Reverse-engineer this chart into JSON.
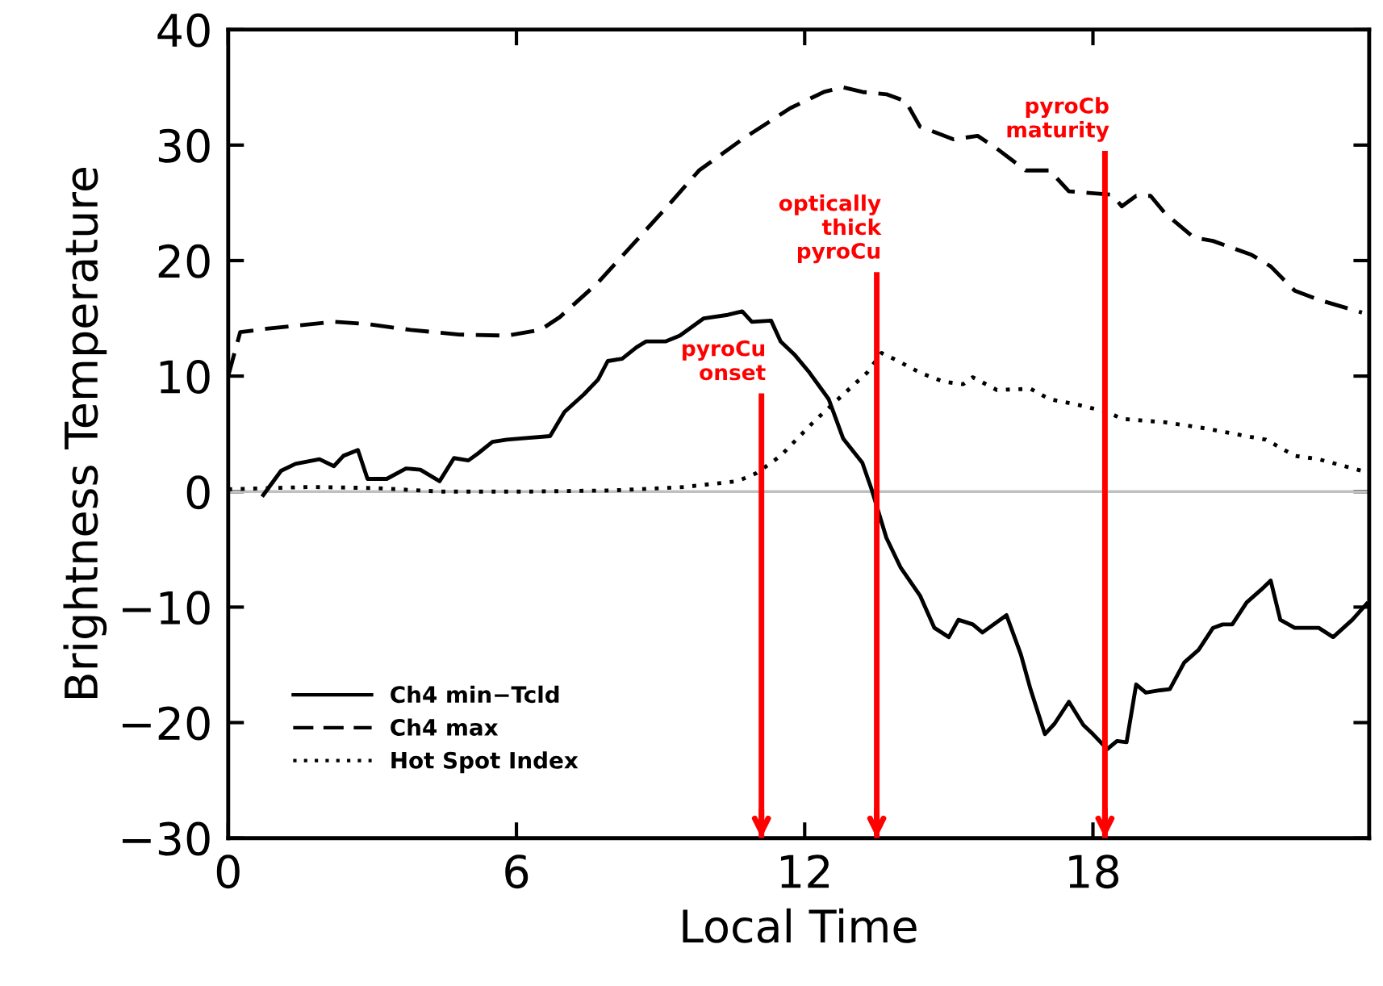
{
  "chart_data": {
    "type": "line",
    "xlabel": "Local Time",
    "ylabel": "Brightness Temperature",
    "xlim": [
      0,
      23.75
    ],
    "xticks": [
      0,
      6,
      12,
      18
    ],
    "ylim": [
      -30,
      40
    ],
    "yticks": [
      {
        "value": -30,
        "label": "−30"
      },
      {
        "value": -20,
        "label": "−20"
      },
      {
        "value": -10,
        "label": "−10"
      },
      0,
      10,
      20,
      30,
      40
    ],
    "grid": false,
    "legend": "bottom left",
    "series": [
      {
        "name": "Ch4 min−Tcld",
        "color": "#000000",
        "line_style": "solid",
        "x": [
          0.73,
          1.1,
          1.4,
          1.9,
          2.2,
          2.4,
          2.7,
          2.9,
          3.3,
          3.7,
          4.0,
          4.4,
          4.7,
          5.0,
          5.2,
          5.5,
          5.8,
          6.1,
          6.7,
          7.0,
          7.4,
          7.7,
          7.9,
          8.2,
          8.5,
          8.7,
          9.1,
          9.4,
          9.9,
          10.4,
          10.7,
          10.9,
          11.3,
          11.5,
          11.8,
          12.1,
          12.5,
          12.8,
          13.2,
          13.4,
          13.7,
          14.0,
          14.4,
          14.7,
          15.0,
          15.2,
          15.5,
          15.7,
          16.2,
          16.5,
          16.7,
          17.0,
          17.2,
          17.5,
          17.8,
          18.0,
          18.3,
          18.5,
          18.7,
          18.9,
          19.1,
          19.4,
          19.6,
          19.9,
          20.2,
          20.5,
          20.7,
          20.9,
          21.2,
          21.5,
          21.7,
          21.9,
          22.2,
          22.7,
          23.0,
          23.4,
          23.7
        ],
        "values": [
          -0.3,
          1.8,
          2.4,
          2.8,
          2.2,
          3.1,
          3.6,
          1.1,
          1.1,
          2.0,
          1.9,
          0.9,
          2.9,
          2.7,
          3.3,
          4.3,
          4.5,
          4.6,
          4.8,
          6.9,
          8.4,
          9.7,
          11.3,
          11.5,
          12.5,
          13.0,
          13.0,
          13.5,
          15.0,
          15.3,
          15.6,
          14.7,
          14.8,
          13.0,
          11.8,
          10.3,
          8.0,
          4.6,
          2.5,
          0.1,
          -4.0,
          -6.6,
          -9.0,
          -11.8,
          -12.6,
          -11.1,
          -11.5,
          -12.2,
          -10.7,
          -14.1,
          -17.1,
          -21.0,
          -20.1,
          -18.2,
          -20.2,
          -21.0,
          -22.3,
          -21.6,
          -21.7,
          -16.7,
          -17.4,
          -17.2,
          -17.1,
          -14.8,
          -13.7,
          -11.8,
          -11.5,
          -11.5,
          -9.6,
          -8.5,
          -7.7,
          -11.1,
          -11.8,
          -11.8,
          -12.6,
          -11.1,
          -9.7
        ]
      },
      {
        "name": "Ch4 max",
        "color": "#000000",
        "line_style": "dashed",
        "x": [
          0,
          0.25,
          0.8,
          1.5,
          2.2,
          2.9,
          3.8,
          4.8,
          5.8,
          6.5,
          6.9,
          7.7,
          8.4,
          9.1,
          9.8,
          10.7,
          11.7,
          12.4,
          12.8,
          13.2,
          13.7,
          14.1,
          14.4,
          15.1,
          15.6,
          16.0,
          16.6,
          17.1,
          17.5,
          18.4,
          18.6,
          18.9,
          19.2,
          19.5,
          20.1,
          20.5,
          21.3,
          21.7,
          22.2,
          22.7,
          23.6
        ],
        "values": [
          10,
          13.8,
          14.1,
          14.4,
          14.7,
          14.5,
          14.0,
          13.6,
          13.5,
          14.0,
          15.1,
          18.1,
          21.3,
          24.5,
          27.8,
          30.5,
          33.2,
          34.6,
          35.0,
          34.6,
          34.4,
          33.8,
          31.6,
          30.5,
          30.8,
          29.7,
          27.8,
          27.8,
          26.0,
          25.7,
          24.7,
          25.6,
          25.6,
          24.1,
          22.0,
          21.7,
          20.5,
          19.5,
          17.4,
          16.6,
          15.5
        ]
      },
      {
        "name": "Hot Spot Index",
        "color": "#000000",
        "line_style": "dotted",
        "x": [
          0,
          1.7,
          3.1,
          4.4,
          6.2,
          8.0,
          9.5,
          10.6,
          11.0,
          11.5,
          12.2,
          12.8,
          13.3,
          13.6,
          13.9,
          14.4,
          14.9,
          15.3,
          15.5,
          16.0,
          16.7,
          17.1,
          17.7,
          18.3,
          18.6,
          19.5,
          20.3,
          21.2,
          21.6,
          22.2,
          22.7,
          23.6
        ],
        "values": [
          0.2,
          0.4,
          0.3,
          0,
          0,
          0.1,
          0.4,
          0.9,
          1.6,
          3.1,
          6.1,
          8.4,
          10.3,
          12.0,
          11.4,
          10.3,
          9.5,
          9.3,
          9.9,
          8.8,
          8.9,
          8.0,
          7.5,
          6.9,
          6.3,
          6.0,
          5.5,
          4.8,
          4.5,
          3.1,
          2.8,
          1.8
        ]
      }
    ],
    "ref_lines": [
      {
        "axis": "y",
        "value": 0,
        "color": "#c0c0c0"
      },
      {
        "axis": "x",
        "value": 11.1,
        "label": "pyroCu\nonset",
        "color": "#ff0000"
      },
      {
        "axis": "x",
        "value": 13.5,
        "label": "optically\nthick\npyroCu",
        "color": "#ff0000"
      },
      {
        "axis": "x",
        "value": 18.25,
        "label": "pyroCb\nmaturity",
        "color": "#ff0000"
      }
    ]
  }
}
